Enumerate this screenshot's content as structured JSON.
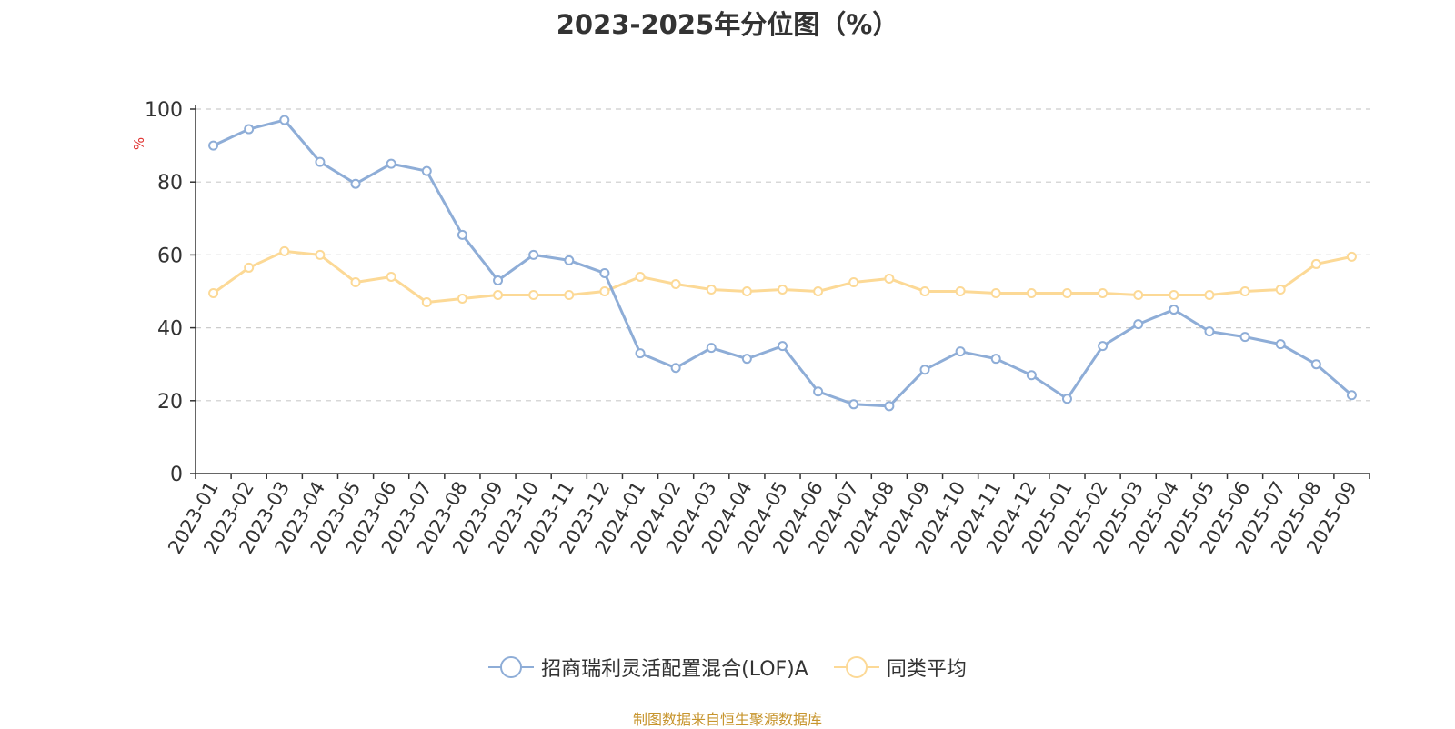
{
  "title": "2023-2025年分位图（%）",
  "source": "制图数据来自恒生聚源数据库",
  "chart_data": {
    "type": "line",
    "ylabel": "%",
    "ylim": [
      0,
      100
    ],
    "yticks": [
      0,
      20,
      40,
      60,
      80,
      100
    ],
    "grid": true,
    "legend_position": "bottom",
    "categories": [
      "2023-01",
      "2023-02",
      "2023-03",
      "2023-04",
      "2023-05",
      "2023-06",
      "2023-07",
      "2023-08",
      "2023-09",
      "2023-10",
      "2023-11",
      "2023-12",
      "2024-01",
      "2024-02",
      "2024-03",
      "2024-04",
      "2024-05",
      "2024-06",
      "2024-07",
      "2024-08",
      "2024-09",
      "2024-10",
      "2024-11",
      "2024-12",
      "2025-01",
      "2025-02",
      "2025-03",
      "2025-04",
      "2025-05",
      "2025-06",
      "2025-07",
      "2025-08",
      "2025-09"
    ],
    "series": [
      {
        "name": "招商瑞利灵活配置混合(LOF)A",
        "color": "#8eadd7",
        "values": [
          90.0,
          94.5,
          97.0,
          85.5,
          79.5,
          85.0,
          83.0,
          65.5,
          53.0,
          60.0,
          58.5,
          55.0,
          33.0,
          29.0,
          34.5,
          31.5,
          35.0,
          22.5,
          19.0,
          18.5,
          28.5,
          33.5,
          31.5,
          27.0,
          20.5,
          35.0,
          41.0,
          45.0,
          39.0,
          37.5,
          35.5,
          30.0,
          21.5
        ]
      },
      {
        "name": "同类平均",
        "color": "#fcd996",
        "values": [
          49.5,
          56.5,
          61.0,
          60.0,
          52.5,
          54.0,
          47.0,
          48.0,
          49.0,
          49.0,
          49.0,
          50.0,
          54.0,
          52.0,
          50.5,
          50.0,
          50.5,
          50.0,
          52.5,
          53.5,
          50.0,
          50.0,
          49.5,
          49.5,
          49.5,
          49.5,
          49.0,
          49.0,
          49.0,
          50.0,
          50.5,
          57.5,
          59.5
        ]
      }
    ]
  }
}
